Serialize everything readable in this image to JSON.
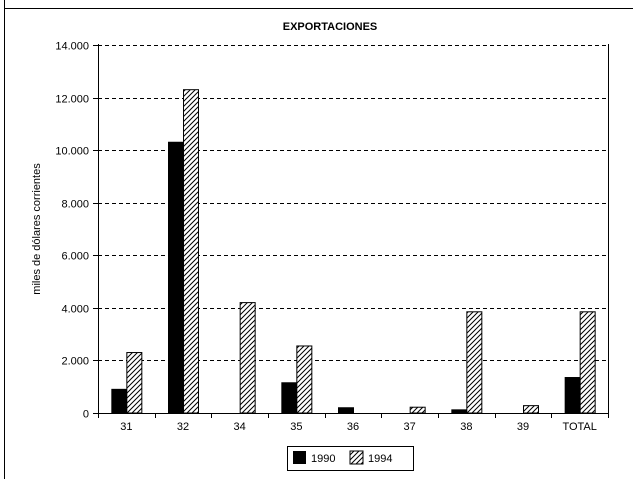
{
  "chart_data": {
    "type": "bar",
    "title": "EXPORTACIONES",
    "ylabel": "miles de dólares corrientes",
    "xlabel": "",
    "categories": [
      "31",
      "32",
      "34",
      "35",
      "36",
      "37",
      "38",
      "39",
      "TOTAL"
    ],
    "series": [
      {
        "name": "1990",
        "values": [
          900,
          10300,
          0,
          1150,
          200,
          0,
          120,
          0,
          1350
        ],
        "fill": "#000000"
      },
      {
        "name": "1994",
        "values": [
          2300,
          12300,
          4200,
          2550,
          0,
          220,
          3850,
          280,
          3850
        ],
        "fill": "hatch"
      }
    ],
    "ylim": [
      0,
      14000
    ],
    "yticks": [
      "0",
      "2.000",
      "4.000",
      "6.000",
      "8.000",
      "10.000",
      "12.000",
      "14.000"
    ],
    "grid": "horizontal dashed",
    "legend": "bottom-center"
  }
}
